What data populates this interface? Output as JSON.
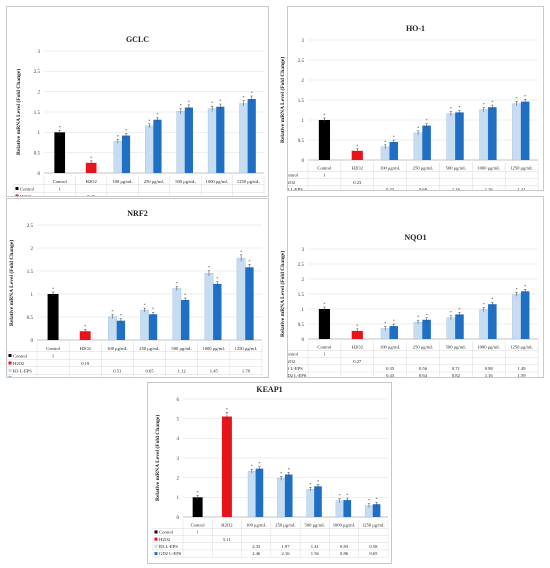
{
  "colors": {
    "control": "#000000",
    "h2o2": "#e8141b",
    "b3": "#c6dcf0",
    "gd2": "#1f6fc5",
    "grid": "#dcdcdc"
  },
  "table_rows": [
    "Control",
    "H2O2",
    "B3 L-EPS",
    "GD2 L-EPS"
  ],
  "categories": [
    "Control",
    "H2O2",
    "100 μg/mL",
    "250 μg/mL",
    "500 μg/mL",
    "1000 μg/mL",
    "1250 μg/mL"
  ],
  "chart_data": [
    {
      "type": "bar",
      "title": "GCLC",
      "ylabel": "Relative mRNA Level (Fold Change)",
      "ylim": [
        0,
        3
      ],
      "yticks": [
        0,
        0.5,
        1,
        1.5,
        2,
        2.5,
        3
      ],
      "control": 1,
      "h2o2": 0.25,
      "b3": [
        0.78,
        1.16,
        1.52,
        1.58,
        1.71
      ],
      "gd2": [
        0.92,
        1.31,
        1.61,
        1.63,
        1.82
      ]
    },
    {
      "type": "bar",
      "title": "HO-1",
      "ylabel": "Relative mRNA Level (Fold Change)",
      "ylim": [
        0,
        3
      ],
      "yticks": [
        0,
        0.5,
        1,
        1.5,
        2,
        2.5,
        3
      ],
      "control": 1,
      "h2o2": 0.23,
      "b3": [
        0.33,
        0.68,
        1.16,
        1.26,
        1.41
      ],
      "gd2": [
        0.45,
        0.86,
        1.19,
        1.32,
        1.46
      ]
    },
    {
      "type": "bar",
      "title": "NRF2",
      "ylabel": "Relative mRNA Level (Fold Change)",
      "ylim": [
        0,
        2.5
      ],
      "yticks": [
        0,
        0.5,
        1,
        1.5,
        2,
        2.5
      ],
      "control": 1,
      "h2o2": 0.19,
      "b3": [
        0.51,
        0.65,
        1.12,
        1.45,
        1.78
      ],
      "gd2": [
        0.42,
        0.56,
        0.87,
        1.22,
        1.58
      ]
    },
    {
      "type": "bar",
      "title": "NQO1",
      "ylabel": "Relative mRNA Level (Fold Change)",
      "ylim": [
        0,
        3
      ],
      "yticks": [
        0,
        0.5,
        1,
        1.5,
        2,
        2.5,
        3
      ],
      "control": 1,
      "h2o2": 0.27,
      "b3": [
        0.35,
        0.56,
        0.71,
        0.98,
        1.49
      ],
      "gd2": [
        0.43,
        0.64,
        0.82,
        1.16,
        1.59
      ]
    },
    {
      "type": "bar",
      "title": "KEAP1",
      "ylabel": "Relative mRNA Level (Fold Change)",
      "ylim": [
        0,
        6
      ],
      "yticks": [
        0,
        1,
        2,
        3,
        4,
        5,
        6
      ],
      "control": 1,
      "h2o2": 5.11,
      "b3": [
        2.33,
        1.97,
        1.41,
        0.83,
        0.58
      ],
      "gd2": [
        2.46,
        2.16,
        1.56,
        0.86,
        0.65
      ]
    }
  ]
}
